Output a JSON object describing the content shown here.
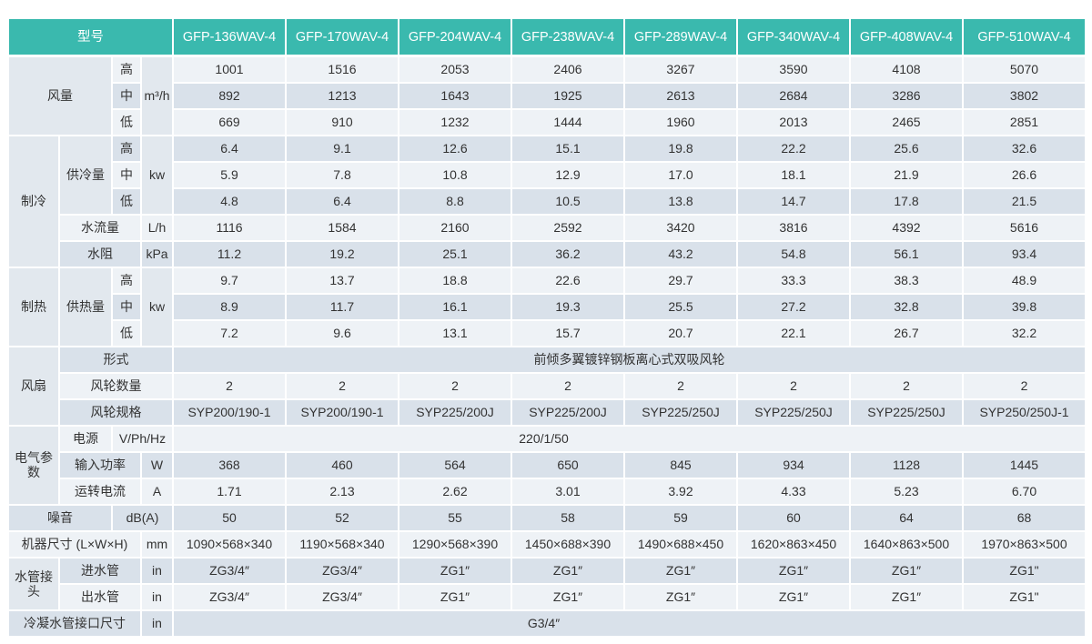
{
  "colors": {
    "header_bg": "#3ab9ae",
    "header_text": "#ffffff",
    "row_light": "#eef2f6",
    "row_dark": "#d9e1ea",
    "label_merged_bg": "#e2e8ee",
    "body_text": "#333333"
  },
  "table": {
    "header": {
      "model_label": "型号",
      "models": [
        "GFP-136WAV-4",
        "GFP-170WAV-4",
        "GFP-204WAV-4",
        "GFP-238WAV-4",
        "GFP-289WAV-4",
        "GFP-340WAV-4",
        "GFP-408WAV-4",
        "GFP-510WAV-4"
      ]
    },
    "rows": [
      [
        {
          "t": "风量",
          "rs": 3,
          "cs": 2,
          "m": 1,
          "n": "row-label-air-volume"
        },
        {
          "t": "高",
          "n": "speed-high-label"
        },
        {
          "t": "m³/h",
          "rs": 3,
          "m": 1,
          "n": "unit-label"
        },
        "1001",
        "1516",
        "2053",
        "2406",
        "3267",
        "3590",
        "4108",
        "5070"
      ],
      [
        {
          "t": "中",
          "n": "speed-mid-label"
        },
        "892",
        "1213",
        "1643",
        "1925",
        "2613",
        "2684",
        "3286",
        "3802"
      ],
      [
        {
          "t": "低",
          "n": "speed-low-label"
        },
        "669",
        "910",
        "1232",
        "1444",
        "1960",
        "2013",
        "2465",
        "2851"
      ],
      [
        {
          "t": "制冷",
          "rs": 5,
          "m": 1,
          "n": "row-label-cooling"
        },
        {
          "t": "供冷量",
          "rs": 3,
          "m": 1,
          "n": "row-label-cooling-capacity"
        },
        {
          "t": "高",
          "n": "speed-high-label"
        },
        {
          "t": "kw",
          "rs": 3,
          "m": 1,
          "n": "unit-label"
        },
        "6.4",
        "9.1",
        "12.6",
        "15.1",
        "19.8",
        "22.2",
        "25.6",
        "32.6"
      ],
      [
        {
          "t": "中",
          "n": "speed-mid-label"
        },
        "5.9",
        "7.8",
        "10.8",
        "12.9",
        "17.0",
        "18.1",
        "21.9",
        "26.6"
      ],
      [
        {
          "t": "低",
          "n": "speed-low-label"
        },
        "4.8",
        "6.4",
        "8.8",
        "10.5",
        "13.8",
        "14.7",
        "17.8",
        "21.5"
      ],
      [
        {
          "t": "水流量",
          "cs": 2,
          "n": "row-label-water-flow"
        },
        {
          "t": "L/h",
          "n": "unit-label"
        },
        "1116",
        "1584",
        "2160",
        "2592",
        "3420",
        "3816",
        "4392",
        "5616"
      ],
      [
        {
          "t": "水阻",
          "cs": 2,
          "n": "row-label-water-resistance"
        },
        {
          "t": "kPa",
          "n": "unit-label"
        },
        "11.2",
        "19.2",
        "25.1",
        "36.2",
        "43.2",
        "54.8",
        "56.1",
        "93.4"
      ],
      [
        {
          "t": "制热",
          "rs": 3,
          "m": 1,
          "n": "row-label-heating"
        },
        {
          "t": "供热量",
          "rs": 3,
          "m": 1,
          "n": "row-label-heating-capacity"
        },
        {
          "t": "高",
          "n": "speed-high-label"
        },
        {
          "t": "kw",
          "rs": 3,
          "m": 1,
          "n": "unit-label"
        },
        "9.7",
        "13.7",
        "18.8",
        "22.6",
        "29.7",
        "33.3",
        "38.3",
        "48.9"
      ],
      [
        {
          "t": "中",
          "n": "speed-mid-label"
        },
        "8.9",
        "11.7",
        "16.1",
        "19.3",
        "25.5",
        "27.2",
        "32.8",
        "39.8"
      ],
      [
        {
          "t": "低",
          "n": "speed-low-label"
        },
        "7.2",
        "9.6",
        "13.1",
        "15.7",
        "20.7",
        "22.1",
        "26.7",
        "32.2"
      ],
      [
        {
          "t": "风扇",
          "rs": 3,
          "m": 1,
          "n": "row-label-fan"
        },
        {
          "t": "形式",
          "cs": 3,
          "n": "row-label-fan-type"
        },
        {
          "t": "前倾多翼镀锌钢板离心式双吸风轮",
          "cs": 8,
          "n": "fan-type-value"
        }
      ],
      [
        {
          "t": "风轮数量",
          "cs": 3,
          "n": "row-label-wheel-count"
        },
        "2",
        "2",
        "2",
        "2",
        "2",
        "2",
        "2",
        "2"
      ],
      [
        {
          "t": "风轮规格",
          "cs": 3,
          "n": "row-label-wheel-spec"
        },
        "SYP200/190-1",
        "SYP200/190-1",
        "SYP225/200J",
        "SYP225/200J",
        "SYP225/250J",
        "SYP225/250J",
        "SYP225/250J",
        "SYP250/250J-1"
      ],
      [
        {
          "t": "电气参数",
          "rs": 3,
          "m": 1,
          "n": "row-label-electrical"
        },
        {
          "t": "电源",
          "n": "row-label-power-supply"
        },
        {
          "t": "V/Ph/Hz",
          "cs": 2,
          "n": "unit-label"
        },
        {
          "t": "220/1/50",
          "cs": 8,
          "sh": 1,
          "n": "power-supply-value"
        }
      ],
      [
        {
          "t": "输入功率",
          "cs": 2,
          "n": "row-label-input-power"
        },
        {
          "t": "W",
          "n": "unit-label"
        },
        "368",
        "460",
        "564",
        "650",
        "845",
        "934",
        "1128",
        "1445"
      ],
      [
        {
          "t": "运转电流",
          "cs": 2,
          "n": "row-label-running-current"
        },
        {
          "t": "A",
          "n": "unit-label"
        },
        "1.71",
        "2.13",
        "2.62",
        "3.01",
        "3.92",
        "4.33",
        "5.23",
        "6.70"
      ],
      [
        {
          "t": "噪音",
          "cs": 2,
          "n": "row-label-noise"
        },
        {
          "t": "dB(A)",
          "cs": 2,
          "n": "unit-label"
        },
        "50",
        "52",
        "55",
        "58",
        "59",
        "60",
        "64",
        "68"
      ],
      [
        {
          "t": "机器尺寸 (L×W×H)",
          "cs": 3,
          "n": "row-label-dimensions"
        },
        {
          "t": "mm",
          "n": "unit-label"
        },
        "1090×568×340",
        "1190×568×340",
        "1290×568×390",
        "1450×688×390",
        "1490×688×450",
        "1620×863×450",
        "1640×863×500",
        "1970×863×500"
      ],
      [
        {
          "t": "水管接头",
          "rs": 2,
          "m": 1,
          "n": "row-label-pipe-joint"
        },
        {
          "t": "进水管",
          "cs": 2,
          "n": "row-label-inlet-pipe"
        },
        {
          "t": "in",
          "n": "unit-label"
        },
        "ZG3/4″",
        "ZG3/4″",
        "ZG1″",
        "ZG1″",
        "ZG1″",
        "ZG1″",
        "ZG1″",
        "ZG1\""
      ],
      [
        {
          "t": "出水管",
          "cs": 2,
          "n": "row-label-outlet-pipe"
        },
        {
          "t": "in",
          "n": "unit-label"
        },
        "ZG3/4″",
        "ZG3/4″",
        "ZG1″",
        "ZG1″",
        "ZG1″",
        "ZG1″",
        "ZG1″",
        "ZG1\""
      ],
      [
        {
          "t": "冷凝水管接口尺寸",
          "cs": 3,
          "n": "row-label-condensate-pipe"
        },
        {
          "t": "in",
          "n": "unit-label"
        },
        {
          "t": "G3/4″",
          "cs": 8,
          "sh": 1,
          "n": "condensate-pipe-value"
        }
      ]
    ]
  }
}
